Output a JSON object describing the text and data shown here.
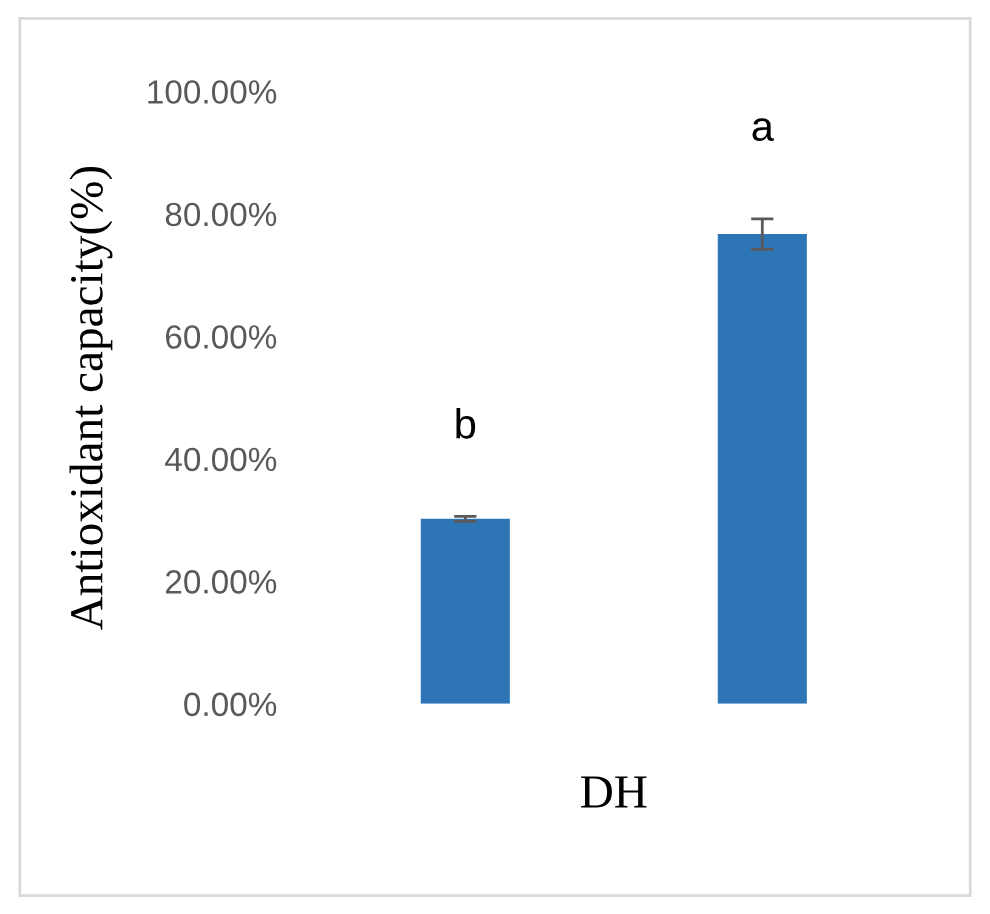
{
  "chart_data": {
    "type": "bar",
    "ylabel": "Antioxidant capacity(%)",
    "xlabel": "DH",
    "categories": [
      null,
      null
    ],
    "values": [
      30.2,
      76.7
    ],
    "errors": [
      0.4,
      2.5
    ],
    "color": "#2e75b6",
    "ylim": [
      0,
      100
    ],
    "yticks": [
      {
        "value": 0,
        "label": "0.00%"
      },
      {
        "value": 20,
        "label": "20.00%"
      },
      {
        "value": 40,
        "label": "40.00%"
      },
      {
        "value": 60,
        "label": "60.00%"
      },
      {
        "value": 80,
        "label": "80.00%"
      },
      {
        "value": 100,
        "label": "100.00%"
      }
    ],
    "annotations": [
      "b",
      "a"
    ],
    "grid": false
  }
}
